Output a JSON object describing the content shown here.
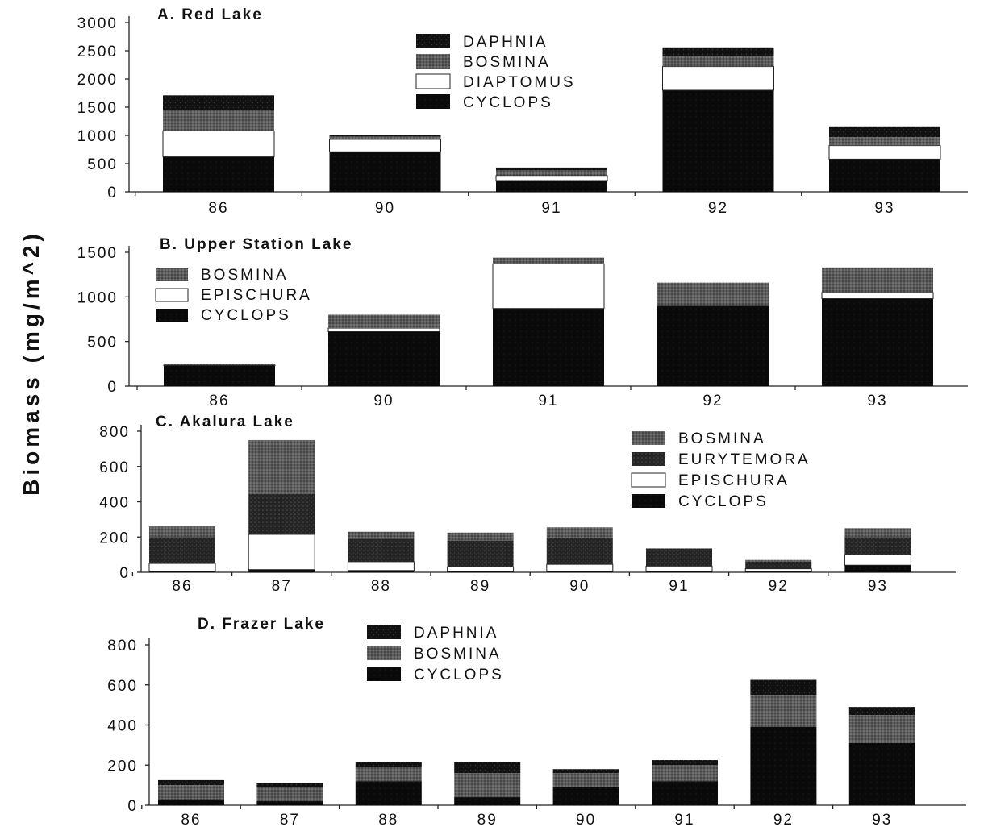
{
  "figure": {
    "ylabel": "Biomass (mg/m^2)",
    "colors": {
      "DAPHNIA": "#111111",
      "BOSMINA": "#5c5c5c",
      "DIAPTOMUS": "#ffffff",
      "EPISCHURA": "#ffffff",
      "EURYTEMORA": "#242424",
      "CYCLOPS": "#0a0a0a"
    }
  },
  "chart_data": [
    {
      "type": "bar",
      "stacked": true,
      "title": "A. Red Lake",
      "categories": [
        "86",
        "90",
        "91",
        "92",
        "93"
      ],
      "yticks": [
        "0",
        "500",
        "1000",
        "1500",
        "2000",
        "2500",
        "3000"
      ],
      "ylim": [
        0,
        3000
      ],
      "legend": [
        "DAPHNIA",
        "BOSMINA",
        "DIAPTOMUS",
        "CYCLOPS"
      ],
      "series": [
        {
          "name": "CYCLOPS",
          "values": [
            620,
            710,
            200,
            1800,
            580
          ]
        },
        {
          "name": "DIAPTOMUS",
          "values": [
            460,
            220,
            90,
            420,
            240
          ]
        },
        {
          "name": "BOSMINA",
          "values": [
            370,
            50,
            90,
            180,
            150
          ]
        },
        {
          "name": "DAPHNIA",
          "values": [
            260,
            20,
            50,
            160,
            190
          ]
        }
      ]
    },
    {
      "type": "bar",
      "stacked": true,
      "title": "B. Upper Station Lake",
      "categories": [
        "86",
        "90",
        "91",
        "92",
        "93"
      ],
      "yticks": [
        "0",
        "500",
        "1000",
        "1500"
      ],
      "ylim": [
        0,
        1500
      ],
      "legend": [
        "BOSMINA",
        "EPISCHURA",
        "CYCLOPS"
      ],
      "series": [
        {
          "name": "CYCLOPS",
          "values": [
            230,
            610,
            870,
            900,
            980
          ]
        },
        {
          "name": "EPISCHURA",
          "values": [
            5,
            40,
            500,
            0,
            70
          ]
        },
        {
          "name": "BOSMINA",
          "values": [
            15,
            150,
            70,
            260,
            280
          ]
        }
      ]
    },
    {
      "type": "bar",
      "stacked": true,
      "title": "C. Akalura Lake",
      "categories": [
        "86",
        "87",
        "88",
        "89",
        "90",
        "91",
        "92",
        "93"
      ],
      "yticks": [
        "0",
        "200",
        "400",
        "600",
        "800"
      ],
      "ylim": [
        0,
        800
      ],
      "legend": [
        "BOSMINA",
        "EURYTEMORA",
        "EPISCHURA",
        "CYCLOPS"
      ],
      "series": [
        {
          "name": "CYCLOPS",
          "values": [
            5,
            15,
            10,
            5,
            5,
            5,
            5,
            40
          ]
        },
        {
          "name": "EPISCHURA",
          "values": [
            45,
            200,
            50,
            25,
            40,
            30,
            15,
            60
          ]
        },
        {
          "name": "EURYTEMORA",
          "values": [
            150,
            230,
            130,
            150,
            150,
            100,
            40,
            100
          ]
        },
        {
          "name": "BOSMINA",
          "values": [
            60,
            305,
            40,
            45,
            60,
            0,
            10,
            50
          ]
        }
      ]
    },
    {
      "type": "bar",
      "stacked": true,
      "title": "D. Frazer Lake",
      "categories": [
        "86",
        "87",
        "88",
        "89",
        "90",
        "91",
        "92",
        "93"
      ],
      "yticks": [
        "0",
        "200",
        "400",
        "600",
        "800"
      ],
      "ylim": [
        0,
        800
      ],
      "legend": [
        "DAPHNIA",
        "BOSMINA",
        "CYCLOPS"
      ],
      "series": [
        {
          "name": "CYCLOPS",
          "values": [
            30,
            20,
            120,
            40,
            90,
            120,
            390,
            310
          ]
        },
        {
          "name": "BOSMINA",
          "values": [
            70,
            70,
            70,
            120,
            70,
            80,
            160,
            140
          ]
        },
        {
          "name": "DAPHNIA",
          "values": [
            25,
            20,
            25,
            55,
            20,
            25,
            75,
            40
          ]
        }
      ]
    }
  ]
}
